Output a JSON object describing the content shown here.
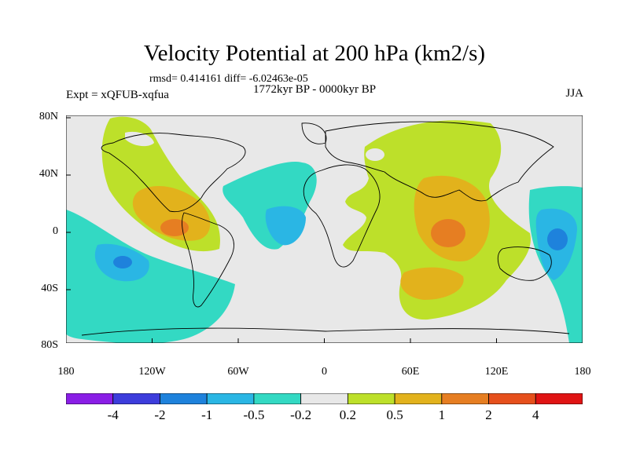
{
  "title": "Velocity Potential at 200 hPa (km2/s)",
  "stats": "rmsd= 0.414161 diff= -6.02463e-05",
  "period": "1772kyr BP - 0000kyr BP",
  "experiment": "Expt = xQFUB-xqfua",
  "season": "JJA",
  "lat_ticks": [
    "80N",
    "40N",
    "0",
    "40S",
    "80S"
  ],
  "lon_ticks": [
    "180",
    "120W",
    "60W",
    "0",
    "60E",
    "120E",
    "180"
  ],
  "colorbar": {
    "labels": [
      "-4",
      "-2",
      "-1",
      "-0.5",
      "-0.2",
      "0.2",
      "0.5",
      "1",
      "2",
      "4"
    ],
    "colors": [
      "#8a1ee6",
      "#3d3ddc",
      "#1e82dc",
      "#2ab6e4",
      "#33d9c3",
      "#e8e8e8",
      "#bde02a",
      "#e2b21c",
      "#e67e22",
      "#e6501c",
      "#e01414"
    ]
  }
}
